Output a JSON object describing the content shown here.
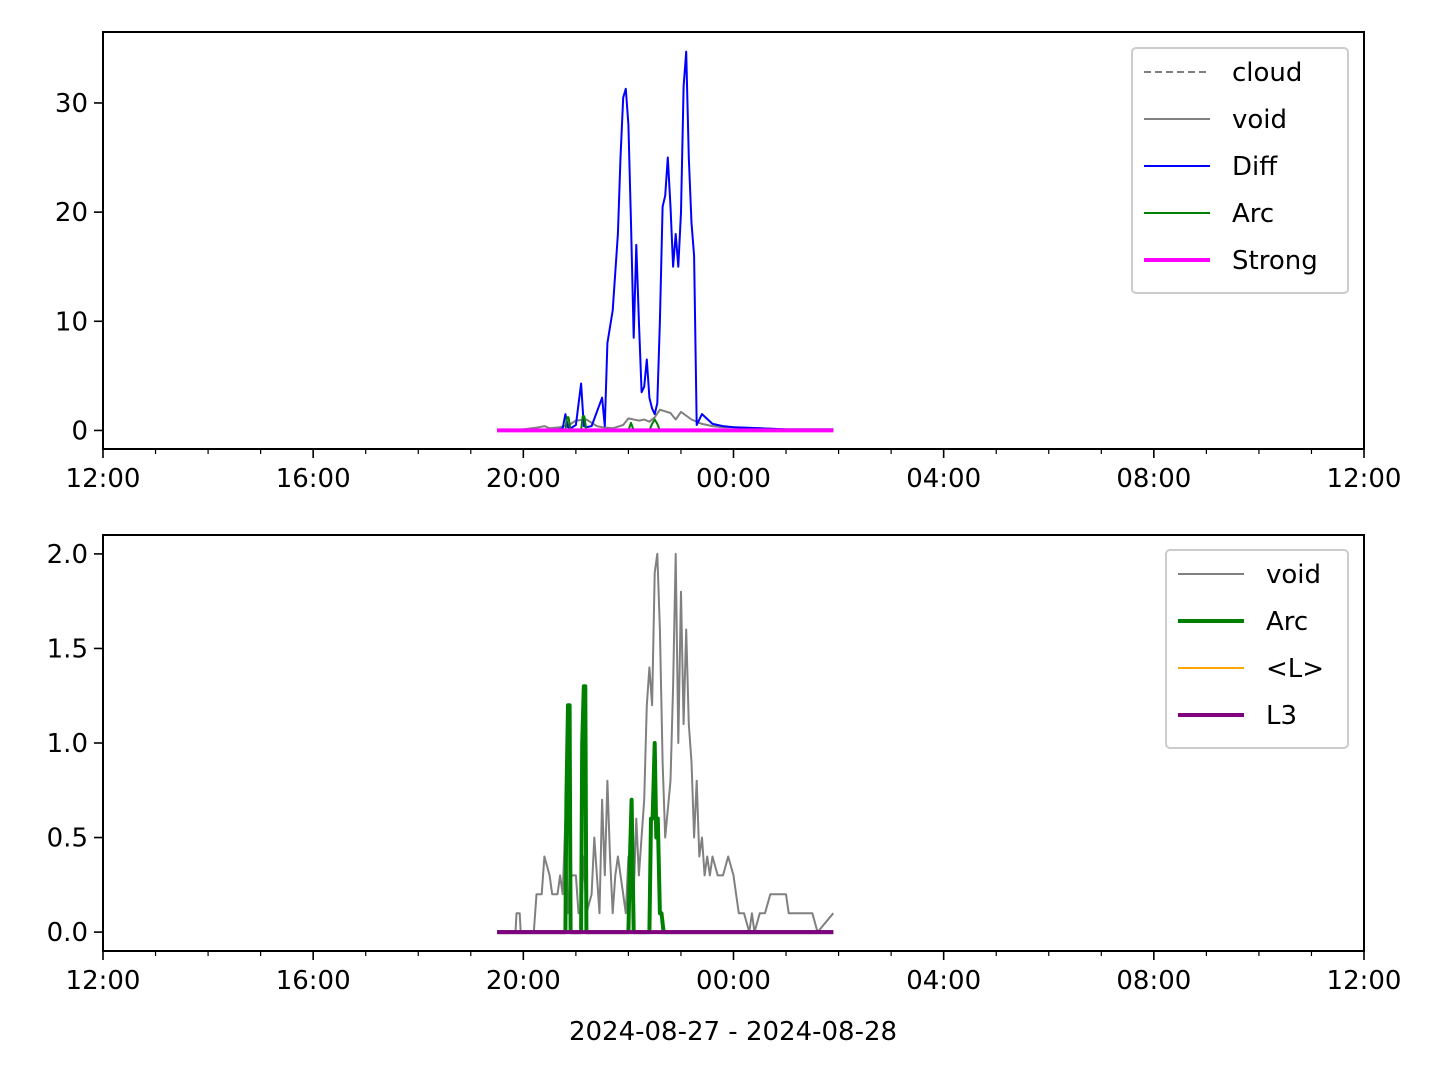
{
  "figure": {
    "xlabel": "2024-08-27 - 2024-08-28"
  },
  "colors": {
    "cloud": "#808080",
    "void": "#808080",
    "Diff": "#0000ff",
    "Arc": "#008000",
    "Strong": "#ff00ff",
    "L_avg": "#ffa500",
    "L3": "#800080"
  },
  "chart_data": [
    {
      "type": "line",
      "title": "",
      "x_unit": "hours since 2024-08-27 12:00",
      "xlim": [
        0,
        24
      ],
      "ylim": [
        -1.7,
        36.5
      ],
      "x_ticks": [
        0,
        4,
        8,
        12,
        16,
        20,
        24
      ],
      "x_tick_labels": [
        "12:00",
        "16:00",
        "20:00",
        "00:00",
        "04:00",
        "08:00",
        "12:00"
      ],
      "x_minor_step": 1,
      "y_ticks": [
        0,
        10,
        20,
        30
      ],
      "y_tick_labels": [
        "0",
        "10",
        "20",
        "30"
      ],
      "legend_position": "top-right",
      "series": [
        {
          "name": "cloud",
          "style": "dashed",
          "width": 2,
          "x": [
            7.5,
            13.9
          ],
          "y": [
            0,
            0
          ]
        },
        {
          "name": "void",
          "style": "solid",
          "width": 2,
          "x": [
            7.5,
            7.9,
            8.0,
            8.3,
            8.4,
            8.5,
            8.7,
            8.9,
            9.0,
            9.2,
            9.4,
            9.5,
            9.7,
            9.9,
            10.0,
            10.2,
            10.3,
            10.4,
            10.5,
            10.6,
            10.8,
            10.9,
            11.0,
            11.2,
            11.4,
            11.6,
            11.8,
            12.0,
            12.5,
            13.0,
            13.5,
            13.9
          ],
          "y": [
            0,
            0,
            0.1,
            0.3,
            0.4,
            0.2,
            0.3,
            0.6,
            0.9,
            1.0,
            0.4,
            0.3,
            0.2,
            0.5,
            1.1,
            0.9,
            1.0,
            0.8,
            1.2,
            1.9,
            1.6,
            1.0,
            1.7,
            1.0,
            0.6,
            0.4,
            0.3,
            0.3,
            0.2,
            0.1,
            0.1,
            0.1
          ]
        },
        {
          "name": "Diff",
          "style": "solid",
          "width": 2,
          "x": [
            7.5,
            8.6,
            8.75,
            8.8,
            8.85,
            8.9,
            9.0,
            9.1,
            9.15,
            9.2,
            9.3,
            9.5,
            9.55,
            9.6,
            9.7,
            9.8,
            9.85,
            9.9,
            9.95,
            10.0,
            10.05,
            10.1,
            10.15,
            10.2,
            10.25,
            10.3,
            10.35,
            10.4,
            10.45,
            10.5,
            10.55,
            10.6,
            10.65,
            10.7,
            10.75,
            10.8,
            10.85,
            10.9,
            10.95,
            11.0,
            11.05,
            11.1,
            11.15,
            11.2,
            11.25,
            11.3,
            11.4,
            11.6,
            11.8,
            12.0,
            13.0,
            13.9
          ],
          "y": [
            0,
            0,
            0.2,
            1.5,
            0.3,
            0.2,
            0.5,
            4.3,
            0.4,
            0.3,
            0.4,
            3.0,
            0.4,
            8.0,
            11.0,
            18.0,
            25.0,
            30.5,
            31.3,
            28.0,
            19.0,
            8.5,
            17.0,
            10.0,
            3.5,
            4.0,
            6.5,
            3.0,
            2.0,
            1.5,
            2.5,
            10.0,
            20.5,
            21.5,
            25.0,
            20.5,
            15.0,
            18.0,
            15.0,
            20.0,
            31.5,
            34.7,
            25.0,
            19.0,
            16.0,
            0.5,
            1.5,
            0.6,
            0.4,
            0.3,
            0.1,
            0.1
          ]
        },
        {
          "name": "Arc",
          "style": "solid",
          "width": 2,
          "x": [
            7.5,
            8.8,
            8.83,
            8.86,
            8.9,
            9.1,
            9.13,
            9.16,
            9.2,
            10.0,
            10.05,
            10.1,
            10.4,
            10.45,
            10.5,
            10.55,
            10.6,
            13.9
          ],
          "y": [
            0,
            0,
            1.2,
            1.2,
            0,
            0,
            1.3,
            1.3,
            0,
            0,
            0.7,
            0,
            0,
            0.6,
            1.0,
            0.6,
            0,
            0
          ]
        },
        {
          "name": "Strong",
          "style": "solid",
          "width": 4,
          "x": [
            7.5,
            13.9
          ],
          "y": [
            0,
            0
          ]
        }
      ]
    },
    {
      "type": "line",
      "title": "",
      "x_unit": "hours since 2024-08-27 12:00",
      "xlim": [
        0,
        24
      ],
      "ylim": [
        -0.1,
        2.1
      ],
      "x_ticks": [
        0,
        4,
        8,
        12,
        16,
        20,
        24
      ],
      "x_tick_labels": [
        "12:00",
        "16:00",
        "20:00",
        "00:00",
        "04:00",
        "08:00",
        "12:00"
      ],
      "x_minor_step": 1,
      "y_ticks": [
        0,
        0.5,
        1.0,
        1.5,
        2.0
      ],
      "y_tick_labels": [
        "0.0",
        "0.5",
        "1.0",
        "1.5",
        "2.0"
      ],
      "legend_position": "top-right",
      "series": [
        {
          "name": "void",
          "style": "solid",
          "width": 2,
          "x": [
            7.5,
            7.85,
            7.87,
            7.93,
            7.95,
            8.2,
            8.25,
            8.35,
            8.4,
            8.5,
            8.55,
            8.65,
            8.7,
            8.75,
            8.8,
            8.85,
            8.9,
            9.0,
            9.05,
            9.1,
            9.15,
            9.2,
            9.3,
            9.35,
            9.45,
            9.5,
            9.55,
            9.6,
            9.65,
            9.7,
            9.75,
            9.8,
            9.9,
            9.95,
            10.0,
            10.1,
            10.15,
            10.2,
            10.3,
            10.35,
            10.4,
            10.45,
            10.5,
            10.55,
            10.6,
            10.65,
            10.7,
            10.8,
            10.85,
            10.9,
            10.95,
            11.0,
            11.05,
            11.1,
            11.15,
            11.2,
            11.25,
            11.3,
            11.35,
            11.4,
            11.45,
            11.5,
            11.55,
            11.6,
            11.7,
            11.8,
            11.9,
            12.0,
            12.05,
            12.1,
            12.2,
            12.3,
            12.35,
            12.4,
            12.5,
            12.6,
            12.7,
            13.0,
            13.05,
            13.5,
            13.6,
            13.9
          ],
          "y": [
            0,
            0,
            0.1,
            0.1,
            0,
            0,
            0.2,
            0.2,
            0.4,
            0.3,
            0.2,
            0.2,
            0.3,
            0.2,
            0.6,
            0.1,
            0.3,
            0.3,
            0.1,
            0.1,
            0.4,
            0.1,
            0.2,
            0.5,
            0.1,
            0.7,
            0.3,
            0.8,
            0.4,
            0.1,
            0.3,
            0.4,
            0.2,
            0.1,
            0.4,
            0.2,
            0.6,
            0.3,
            0.7,
            1.2,
            1.4,
            1.2,
            1.9,
            2.0,
            1.6,
            0.9,
            0.5,
            0.8,
            1.3,
            2.0,
            1.0,
            1.8,
            1.1,
            1.6,
            1.1,
            0.9,
            0.5,
            0.8,
            0.4,
            0.5,
            0.3,
            0.4,
            0.3,
            0.4,
            0.3,
            0.3,
            0.4,
            0.3,
            0.2,
            0.1,
            0.1,
            0.0,
            0.1,
            0.0,
            0.1,
            0.1,
            0.2,
            0.2,
            0.1,
            0.1,
            0.0,
            0.1
          ]
        },
        {
          "name": "Arc",
          "style": "solid",
          "width": 4,
          "x": [
            7.5,
            8.8,
            8.82,
            8.85,
            8.88,
            8.9,
            9.1,
            9.12,
            9.15,
            9.18,
            9.2,
            10.0,
            10.03,
            10.06,
            10.1,
            10.4,
            10.43,
            10.46,
            10.5,
            10.53,
            10.56,
            10.6,
            10.63,
            10.67,
            13.9
          ],
          "y": [
            0,
            0,
            0.7,
            1.2,
            1.2,
            0,
            0,
            1.0,
            1.3,
            1.3,
            0,
            0,
            0.4,
            0.7,
            0,
            0,
            0.6,
            0.6,
            1.0,
            0.5,
            0.6,
            0.1,
            0.1,
            0,
            0
          ]
        },
        {
          "name": "<L>",
          "style": "solid",
          "width": 2,
          "x": [
            7.5,
            13.9
          ],
          "y": [
            0,
            0
          ]
        },
        {
          "name": "L3",
          "style": "solid",
          "width": 4,
          "x": [
            7.5,
            13.9
          ],
          "y": [
            0,
            0
          ]
        }
      ]
    }
  ]
}
